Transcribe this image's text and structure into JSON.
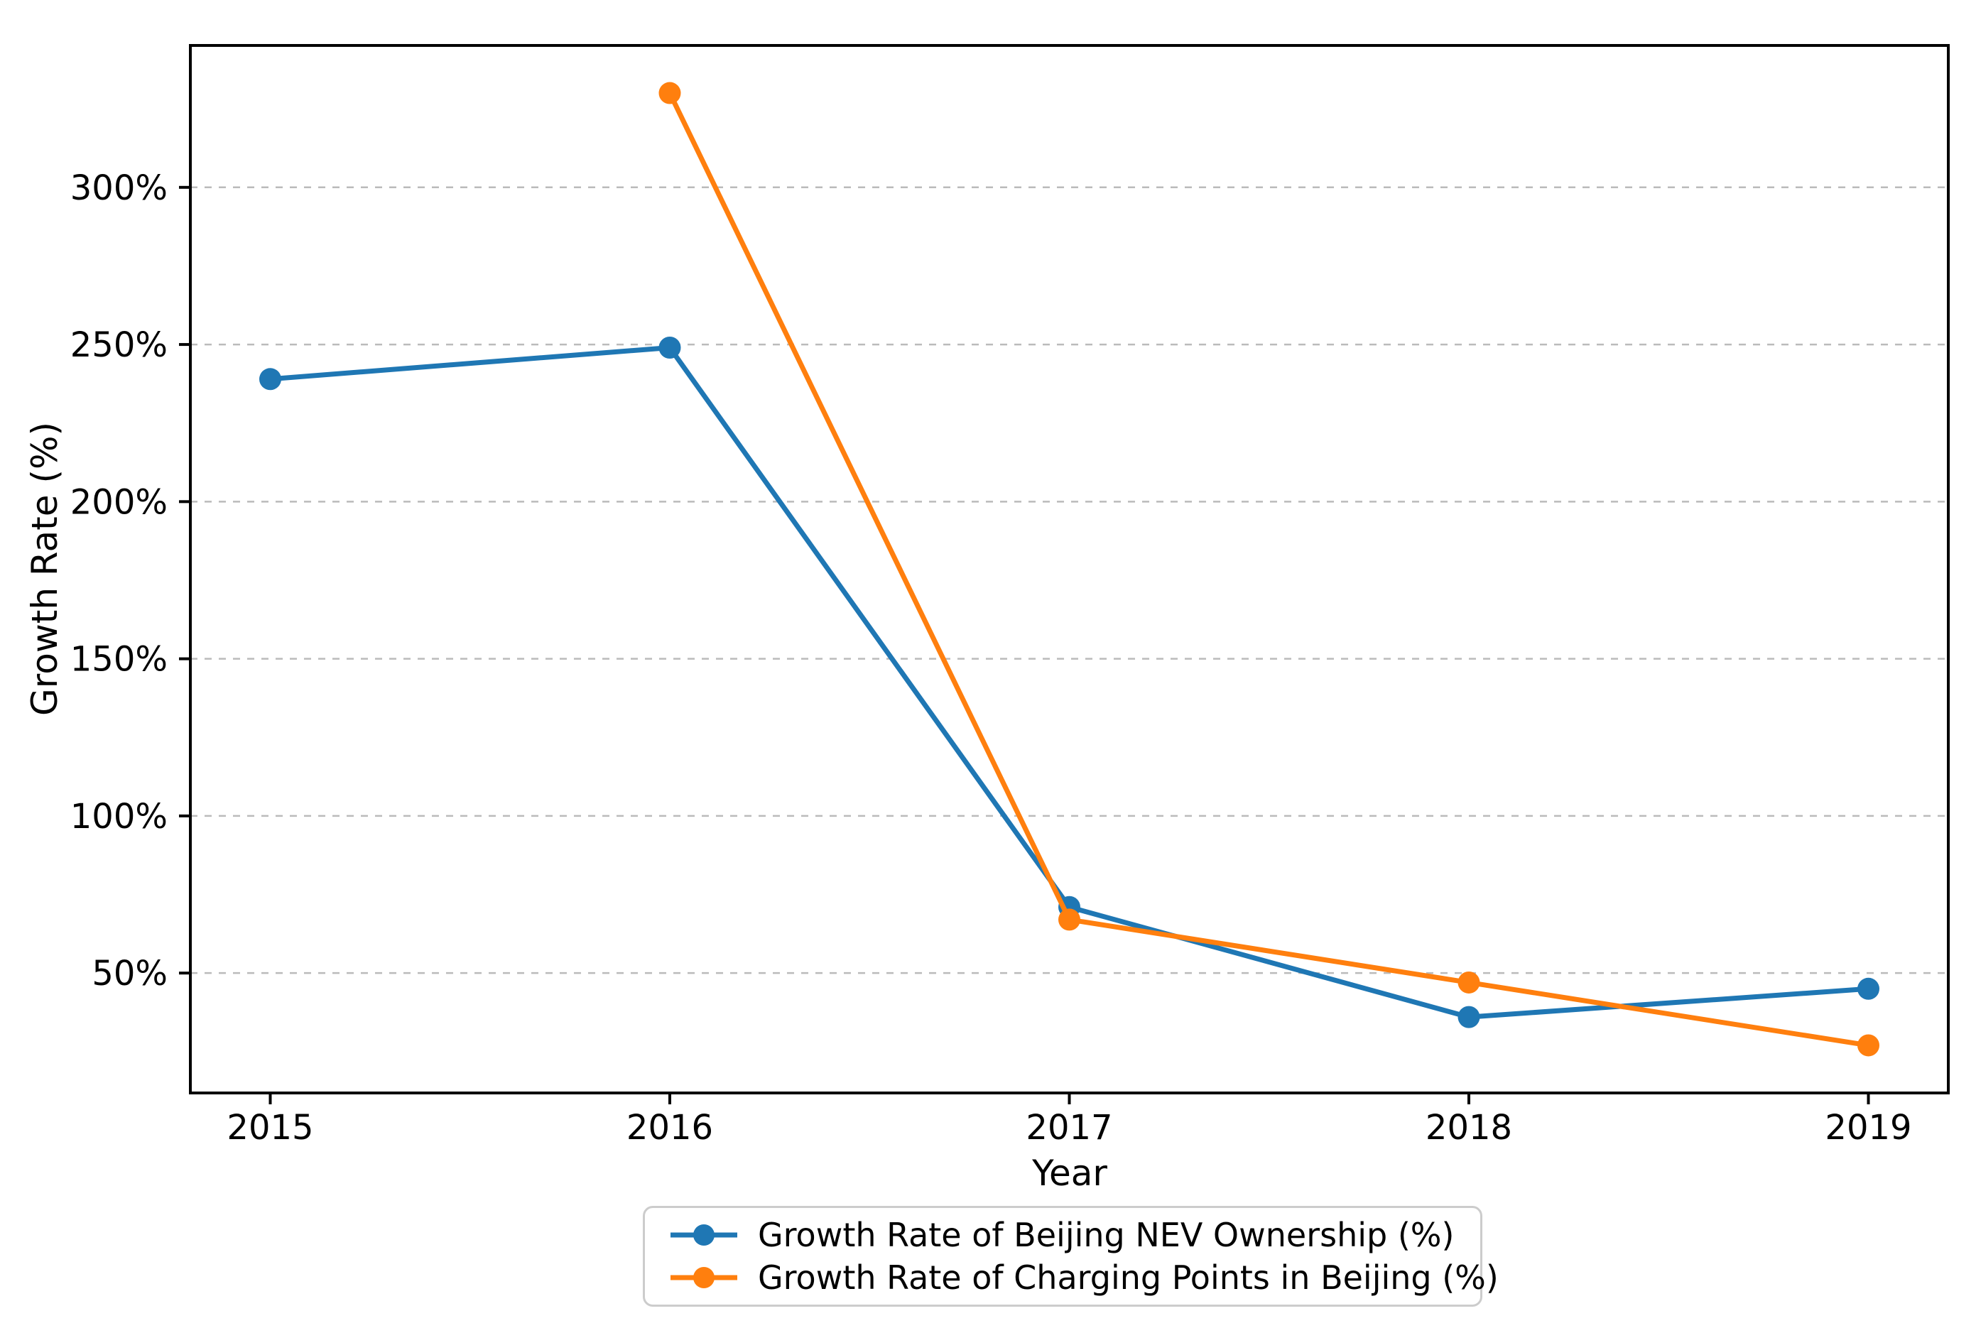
{
  "figure": {
    "background": "#ffffff"
  },
  "chart_data": {
    "type": "line",
    "title": "",
    "xlabel": "Year",
    "ylabel": "Growth Rate (%)",
    "categories": [
      "2015",
      "2016",
      "2017",
      "2018",
      "2019"
    ],
    "series": [
      {
        "name": "Growth Rate of Beijing NEV Ownership (%)",
        "color": "#1f77b4",
        "values": [
          239,
          249,
          71,
          36,
          45
        ]
      },
      {
        "name": "Growth Rate of Charging Points in Beijing (%)",
        "color": "#ff7f0e",
        "values": [
          null,
          330,
          67,
          47,
          27
        ]
      }
    ],
    "yticks": [
      {
        "value": 50,
        "label": "50%"
      },
      {
        "value": 100,
        "label": "100%"
      },
      {
        "value": 150,
        "label": "150%"
      },
      {
        "value": 200,
        "label": "200%"
      },
      {
        "value": 250,
        "label": "250%"
      },
      {
        "value": 300,
        "label": "300%"
      }
    ],
    "xlim": [
      2014.8,
      2019.2
    ],
    "ylim": [
      11.85,
      345.15
    ],
    "grid": "horizontal-dashed",
    "legend_position": "bottom-center",
    "colors": {
      "grid": "#bbbbbb",
      "spine": "#000000",
      "tick_text": "#000000",
      "legend_border": "#cccccc"
    }
  }
}
